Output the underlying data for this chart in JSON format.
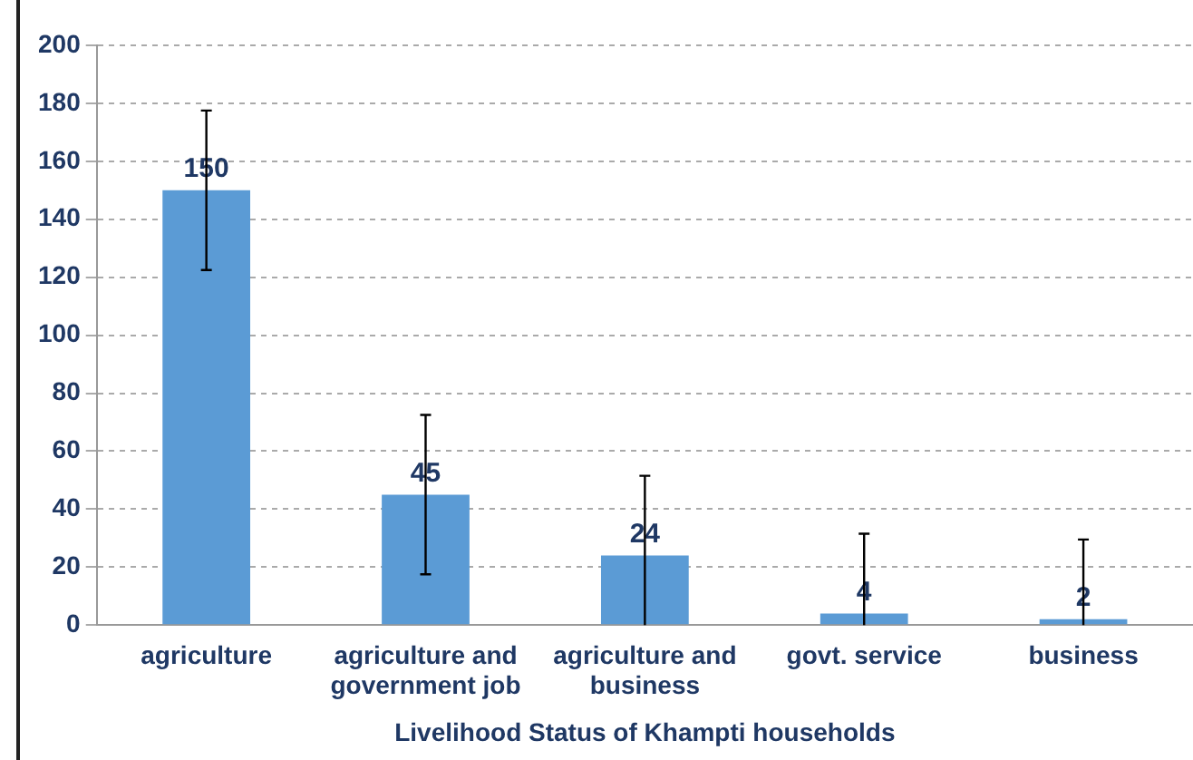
{
  "chart_data": {
    "type": "bar",
    "xlabel": "Livelihood Status of Khampti households",
    "categories": [
      "agriculture",
      "agriculture and government job",
      "agriculture and business",
      "govt. service",
      "business"
    ],
    "values": [
      150,
      45,
      24,
      4,
      2
    ],
    "errors": [
      27.5,
      27.5,
      [
        0,
        51.5
      ],
      [
        0,
        31.5
      ],
      [
        0,
        29.5
      ]
    ],
    "color": "#5b9bd5",
    "ylim": [
      0,
      200
    ],
    "yticks": [
      0,
      20,
      40,
      60,
      80,
      100,
      120,
      140,
      160,
      180,
      200
    ],
    "grid": "y",
    "data_labels": true,
    "legend": false
  }
}
